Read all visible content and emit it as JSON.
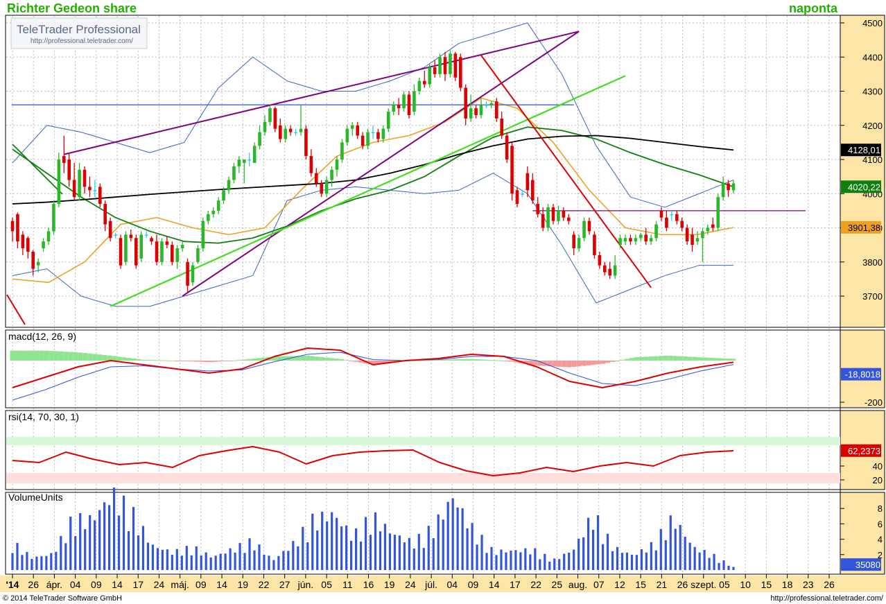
{
  "header": {
    "title": "Richter Gedeon share",
    "interval": "naponta"
  },
  "logo": {
    "brand": "TeleTrader Professional",
    "url": "http://professional.teletrader.com/"
  },
  "footer": {
    "copyright": "© 2014  TeleTrader Software GmbH",
    "url": "http://professional.teletrader.com/"
  },
  "colors": {
    "up": "#2ab82a",
    "down": "#dd0000",
    "doji": "#33c8f0",
    "bollinger": "#3a63c8",
    "sma_orange": "#f0a020",
    "sma_green": "#0f7f0f",
    "sma_black": "#000000",
    "trend_purple": "#800080",
    "trend_green": "#44dd22",
    "trend_red": "#dd0000",
    "trend_blue": "#3366cc",
    "axis_bg": "#fde5a8",
    "grid": "#bbbbbb",
    "volume": "#3355dd",
    "macd_line": "#dd0000",
    "macd_signal": "#3355dd",
    "rsi": "#dd0000"
  },
  "price_panel": {
    "y_ticks": [
      3700,
      3800,
      3900,
      4000,
      4100,
      4200,
      4300,
      4400,
      4500
    ],
    "badges": [
      {
        "label": "4128,01",
        "value": 4128.01,
        "bg": "#000000",
        "fg": "#ffffff"
      },
      {
        "label": "4020,22",
        "value": 4020.22,
        "bg": "#0f7f0f",
        "fg": "#ffffff"
      },
      {
        "label": "3901,38",
        "value": 3901.38,
        "bg": "#f0a020",
        "fg": "#000000"
      }
    ]
  },
  "macd_panel": {
    "label": "macd(12, 26, 9)",
    "y_ticks": [
      {
        "value": -200,
        "label": "-200"
      }
    ],
    "badges": [
      {
        "label": "-18,8018",
        "value": -18.8018,
        "bg": "#3355dd",
        "fg": "#ffffff"
      }
    ]
  },
  "rsi_panel": {
    "label": "rsi(14, 70, 30, 1)",
    "y_ticks": [
      20,
      40
    ],
    "overbought": 70,
    "oversold": 30,
    "badges": [
      {
        "label": "62,2373",
        "value": 62.2373,
        "bg": "#dd0000",
        "fg": "#ffffff"
      }
    ]
  },
  "volume_panel": {
    "label": "VolumeUnits",
    "y_ticks": [
      2,
      4,
      6,
      8
    ],
    "badges": [
      {
        "label": "35080",
        "value": 0.35,
        "bg": "#3355dd",
        "fg": "#ffffff"
      }
    ]
  },
  "date_axis": [
    {
      "label": "'14",
      "bold": true
    },
    {
      "label": "26"
    },
    {
      "label": "ápr."
    },
    {
      "label": "04"
    },
    {
      "label": "09"
    },
    {
      "label": "14"
    },
    {
      "label": "17"
    },
    {
      "label": "24"
    },
    {
      "label": "máj."
    },
    {
      "label": "09"
    },
    {
      "label": "14"
    },
    {
      "label": "19"
    },
    {
      "label": "22"
    },
    {
      "label": "27"
    },
    {
      "label": "jún."
    },
    {
      "label": "05"
    },
    {
      "label": "11"
    },
    {
      "label": "16"
    },
    {
      "label": "19"
    },
    {
      "label": "24"
    },
    {
      "label": "júl."
    },
    {
      "label": "04"
    },
    {
      "label": "09"
    },
    {
      "label": "14"
    },
    {
      "label": "17"
    },
    {
      "label": "22"
    },
    {
      "label": "25"
    },
    {
      "label": "aug."
    },
    {
      "label": "07"
    },
    {
      "label": "12"
    },
    {
      "label": "15"
    },
    {
      "label": "21"
    },
    {
      "label": "26"
    },
    {
      "label": "szept."
    },
    {
      "label": "05"
    },
    {
      "label": "10"
    },
    {
      "label": "15"
    },
    {
      "label": "18"
    },
    {
      "label": "23"
    },
    {
      "label": "26"
    }
  ],
  "chart_data": {
    "type": "candlestick",
    "title": "Richter Gedeon share",
    "ylim": [
      3650,
      4520
    ],
    "candles": [
      {
        "o": 3920,
        "h": 3930,
        "l": 3860,
        "c": 3890
      },
      {
        "o": 3940,
        "h": 3945,
        "l": 3840,
        "c": 3860
      },
      {
        "o": 3880,
        "h": 3890,
        "l": 3820,
        "c": 3840
      },
      {
        "o": 3870,
        "h": 3875,
        "l": 3810,
        "c": 3830
      },
      {
        "o": 3830,
        "h": 3835,
        "l": 3760,
        "c": 3780
      },
      {
        "o": 3790,
        "h": 3810,
        "l": 3770,
        "c": 3800
      },
      {
        "o": 3840,
        "h": 3870,
        "l": 3830,
        "c": 3860
      },
      {
        "o": 3860,
        "h": 3900,
        "l": 3850,
        "c": 3890
      },
      {
        "o": 3890,
        "h": 3980,
        "l": 3880,
        "c": 3970
      },
      {
        "o": 3970,
        "h": 4120,
        "l": 3960,
        "c": 4100
      },
      {
        "o": 4110,
        "h": 4170,
        "l": 4060,
        "c": 4090
      },
      {
        "o": 4100,
        "h": 4120,
        "l": 4020,
        "c": 4040
      },
      {
        "o": 4040,
        "h": 4090,
        "l": 3980,
        "c": 3990
      },
      {
        "o": 3990,
        "h": 4090,
        "l": 3980,
        "c": 4070
      },
      {
        "o": 4070,
        "h": 4080,
        "l": 4000,
        "c": 4020
      },
      {
        "o": 4020,
        "h": 4050,
        "l": 3990,
        "c": 4010
      },
      {
        "o": 4010,
        "h": 4040,
        "l": 3990,
        "c": 4010
      },
      {
        "o": 4020,
        "h": 4030,
        "l": 3960,
        "c": 3970
      },
      {
        "o": 3970,
        "h": 3980,
        "l": 3890,
        "c": 3910
      },
      {
        "o": 3920,
        "h": 3930,
        "l": 3860,
        "c": 3870
      },
      {
        "o": 3880,
        "h": 3885,
        "l": 3870,
        "c": 3880
      },
      {
        "o": 3870,
        "h": 3880,
        "l": 3780,
        "c": 3790
      },
      {
        "o": 3800,
        "h": 3890,
        "l": 3790,
        "c": 3880
      },
      {
        "o": 3880,
        "h": 3895,
        "l": 3860,
        "c": 3870
      },
      {
        "o": 3870,
        "h": 3880,
        "l": 3780,
        "c": 3790
      },
      {
        "o": 3810,
        "h": 3890,
        "l": 3800,
        "c": 3880
      },
      {
        "o": 3880,
        "h": 3890,
        "l": 3870,
        "c": 3880
      },
      {
        "o": 3870,
        "h": 3875,
        "l": 3850,
        "c": 3860
      },
      {
        "o": 3860,
        "h": 3880,
        "l": 3790,
        "c": 3800
      },
      {
        "o": 3800,
        "h": 3870,
        "l": 3790,
        "c": 3860
      },
      {
        "o": 3860,
        "h": 3875,
        "l": 3840,
        "c": 3850
      },
      {
        "o": 3850,
        "h": 3860,
        "l": 3790,
        "c": 3800
      },
      {
        "o": 3800,
        "h": 3850,
        "l": 3780,
        "c": 3840
      },
      {
        "o": 3840,
        "h": 3860,
        "l": 3830,
        "c": 3850
      },
      {
        "o": 3800,
        "h": 3810,
        "l": 3710,
        "c": 3730
      },
      {
        "o": 3740,
        "h": 3800,
        "l": 3730,
        "c": 3790
      },
      {
        "o": 3800,
        "h": 3850,
        "l": 3795,
        "c": 3840
      },
      {
        "o": 3840,
        "h": 3930,
        "l": 3830,
        "c": 3920
      },
      {
        "o": 3920,
        "h": 3950,
        "l": 3910,
        "c": 3940
      },
      {
        "o": 3940,
        "h": 3960,
        "l": 3930,
        "c": 3950
      },
      {
        "o": 3950,
        "h": 3990,
        "l": 3940,
        "c": 3980
      },
      {
        "o": 3980,
        "h": 4020,
        "l": 3970,
        "c": 4010
      },
      {
        "o": 4010,
        "h": 4050,
        "l": 4000,
        "c": 4040
      },
      {
        "o": 4040,
        "h": 4090,
        "l": 4030,
        "c": 4080
      },
      {
        "o": 4080,
        "h": 4110,
        "l": 4060,
        "c": 4100
      },
      {
        "o": 4090,
        "h": 4100,
        "l": 4030,
        "c": 4100
      },
      {
        "o": 4100,
        "h": 4120,
        "l": 4080,
        "c": 4100
      },
      {
        "o": 4090,
        "h": 4150,
        "l": 4090,
        "c": 4140
      },
      {
        "o": 4140,
        "h": 4200,
        "l": 4130,
        "c": 4180
      },
      {
        "o": 4180,
        "h": 4230,
        "l": 4170,
        "c": 4210
      },
      {
        "o": 4210,
        "h": 4260,
        "l": 4200,
        "c": 4250
      },
      {
        "o": 4250,
        "h": 4255,
        "l": 4180,
        "c": 4190
      },
      {
        "o": 4200,
        "h": 4220,
        "l": 4150,
        "c": 4160
      },
      {
        "o": 4160,
        "h": 4200,
        "l": 4150,
        "c": 4190
      },
      {
        "o": 4190,
        "h": 4200,
        "l": 4170,
        "c": 4180
      },
      {
        "o": 4180,
        "h": 4190,
        "l": 4170,
        "c": 4180
      },
      {
        "o": 4180,
        "h": 4260,
        "l": 4170,
        "c": 4190
      },
      {
        "o": 4190,
        "h": 4200,
        "l": 4100,
        "c": 4110
      },
      {
        "o": 4110,
        "h": 4130,
        "l": 4050,
        "c": 4060
      },
      {
        "o": 4060,
        "h": 4075,
        "l": 4020,
        "c": 4030
      },
      {
        "o": 4030,
        "h": 4040,
        "l": 3990,
        "c": 4000
      },
      {
        "o": 4000,
        "h": 4050,
        "l": 3990,
        "c": 4040
      },
      {
        "o": 4040,
        "h": 4080,
        "l": 4020,
        "c": 4070
      },
      {
        "o": 4070,
        "h": 4110,
        "l": 4050,
        "c": 4100
      },
      {
        "o": 4100,
        "h": 4160,
        "l": 4090,
        "c": 4150
      },
      {
        "o": 4150,
        "h": 4200,
        "l": 4140,
        "c": 4190
      },
      {
        "o": 4190,
        "h": 4210,
        "l": 4170,
        "c": 4200
      },
      {
        "o": 4200,
        "h": 4210,
        "l": 4160,
        "c": 4170
      },
      {
        "o": 4170,
        "h": 4180,
        "l": 4130,
        "c": 4140
      },
      {
        "o": 4140,
        "h": 4190,
        "l": 4130,
        "c": 4180
      },
      {
        "o": 4180,
        "h": 4200,
        "l": 4160,
        "c": 4180
      },
      {
        "o": 4180,
        "h": 4190,
        "l": 4150,
        "c": 4160
      },
      {
        "o": 4160,
        "h": 4200,
        "l": 4150,
        "c": 4190
      },
      {
        "o": 4190,
        "h": 4250,
        "l": 4180,
        "c": 4240
      },
      {
        "o": 4240,
        "h": 4270,
        "l": 4230,
        "c": 4260
      },
      {
        "o": 4260,
        "h": 4280,
        "l": 4230,
        "c": 4250
      },
      {
        "o": 4250,
        "h": 4300,
        "l": 4240,
        "c": 4290
      },
      {
        "o": 4290,
        "h": 4300,
        "l": 4220,
        "c": 4230
      },
      {
        "o": 4240,
        "h": 4320,
        "l": 4230,
        "c": 4300
      },
      {
        "o": 4300,
        "h": 4340,
        "l": 4290,
        "c": 4330
      },
      {
        "o": 4330,
        "h": 4360,
        "l": 4310,
        "c": 4320
      },
      {
        "o": 4320,
        "h": 4380,
        "l": 4310,
        "c": 4370
      },
      {
        "o": 4370,
        "h": 4390,
        "l": 4340,
        "c": 4350
      },
      {
        "o": 4350,
        "h": 4410,
        "l": 4340,
        "c": 4400
      },
      {
        "o": 4400,
        "h": 4415,
        "l": 4330,
        "c": 4350
      },
      {
        "o": 4350,
        "h": 4420,
        "l": 4340,
        "c": 4410
      },
      {
        "o": 4410,
        "h": 4415,
        "l": 4330,
        "c": 4340
      },
      {
        "o": 4400,
        "h": 4410,
        "l": 4300,
        "c": 4310
      },
      {
        "o": 4310,
        "h": 4320,
        "l": 4200,
        "c": 4220
      },
      {
        "o": 4220,
        "h": 4290,
        "l": 4210,
        "c": 4250
      },
      {
        "o": 4250,
        "h": 4260,
        "l": 4220,
        "c": 4230
      },
      {
        "o": 4230,
        "h": 4280,
        "l": 4220,
        "c": 4260
      },
      {
        "o": 4260,
        "h": 4270,
        "l": 4250,
        "c": 4260
      },
      {
        "o": 4260,
        "h": 4270,
        "l": 4250,
        "c": 4265
      },
      {
        "o": 4270,
        "h": 4280,
        "l": 4210,
        "c": 4220
      },
      {
        "o": 4220,
        "h": 4240,
        "l": 4160,
        "c": 4170
      },
      {
        "o": 4170,
        "h": 4180,
        "l": 4090,
        "c": 4100
      },
      {
        "o": 4140,
        "h": 4150,
        "l": 3980,
        "c": 4000
      },
      {
        "o": 4010,
        "h": 4020,
        "l": 3960,
        "c": 3970
      },
      {
        "o": 4000,
        "h": 4010,
        "l": 3990,
        "c": 4000
      },
      {
        "o": 4060,
        "h": 4080,
        "l": 3990,
        "c": 4010
      },
      {
        "o": 4040,
        "h": 4060,
        "l": 3970,
        "c": 3980
      },
      {
        "o": 3970,
        "h": 3990,
        "l": 3930,
        "c": 3940
      },
      {
        "o": 3940,
        "h": 3960,
        "l": 3890,
        "c": 3900
      },
      {
        "o": 3900,
        "h": 3970,
        "l": 3890,
        "c": 3960
      },
      {
        "o": 3960,
        "h": 3970,
        "l": 3910,
        "c": 3920
      },
      {
        "o": 3920,
        "h": 3965,
        "l": 3910,
        "c": 3950
      },
      {
        "o": 3950,
        "h": 3960,
        "l": 3920,
        "c": 3930
      },
      {
        "o": 3930,
        "h": 3940,
        "l": 3910,
        "c": 3920
      },
      {
        "o": 3880,
        "h": 3890,
        "l": 3820,
        "c": 3840
      },
      {
        "o": 3840,
        "h": 3880,
        "l": 3830,
        "c": 3870
      },
      {
        "o": 3870,
        "h": 3930,
        "l": 3860,
        "c": 3920
      },
      {
        "o": 3920,
        "h": 3930,
        "l": 3880,
        "c": 3890
      },
      {
        "o": 3880,
        "h": 3890,
        "l": 3810,
        "c": 3820
      },
      {
        "o": 3820,
        "h": 3830,
        "l": 3780,
        "c": 3790
      },
      {
        "o": 3790,
        "h": 3800,
        "l": 3760,
        "c": 3770
      },
      {
        "o": 3780,
        "h": 3800,
        "l": 3750,
        "c": 3760
      },
      {
        "o": 3760,
        "h": 3820,
        "l": 3750,
        "c": 3790
      },
      {
        "o": 3850,
        "h": 3880,
        "l": 3840,
        "c": 3870
      },
      {
        "o": 3860,
        "h": 3880,
        "l": 3850,
        "c": 3870
      },
      {
        "o": 3870,
        "h": 3880,
        "l": 3850,
        "c": 3860
      },
      {
        "o": 3860,
        "h": 3880,
        "l": 3850,
        "c": 3870
      },
      {
        "o": 3870,
        "h": 3885,
        "l": 3860,
        "c": 3880
      },
      {
        "o": 3880,
        "h": 3900,
        "l": 3850,
        "c": 3860
      },
      {
        "o": 3860,
        "h": 3880,
        "l": 3850,
        "c": 3870
      },
      {
        "o": 3870,
        "h": 3920,
        "l": 3860,
        "c": 3910
      },
      {
        "o": 3950,
        "h": 3960,
        "l": 3920,
        "c": 3930
      },
      {
        "o": 3930,
        "h": 3950,
        "l": 3890,
        "c": 3900
      },
      {
        "o": 3940,
        "h": 3950,
        "l": 3920,
        "c": 3940
      },
      {
        "o": 3940,
        "h": 3950,
        "l": 3910,
        "c": 3920
      },
      {
        "o": 3920,
        "h": 3930,
        "l": 3890,
        "c": 3900
      },
      {
        "o": 3900,
        "h": 3910,
        "l": 3850,
        "c": 3860
      },
      {
        "o": 3880,
        "h": 3900,
        "l": 3830,
        "c": 3850
      },
      {
        "o": 3860,
        "h": 3890,
        "l": 3850,
        "c": 3870
      },
      {
        "o": 3870,
        "h": 3900,
        "l": 3800,
        "c": 3890
      },
      {
        "o": 3890,
        "h": 3910,
        "l": 3880,
        "c": 3900
      },
      {
        "o": 3910,
        "h": 3930,
        "l": 3890,
        "c": 3900
      },
      {
        "o": 3900,
        "h": 4000,
        "l": 3890,
        "c": 3990
      },
      {
        "o": 3990,
        "h": 4050,
        "l": 3980,
        "c": 4030
      },
      {
        "o": 4030,
        "h": 4040,
        "l": 3990,
        "c": 4010
      },
      {
        "o": 4010,
        "h": 4040,
        "l": 4000,
        "c": 4030
      }
    ],
    "sma_black": [
      3970,
      3975,
      3982,
      3990,
      3998,
      4005,
      4012,
      4018,
      4024,
      4030,
      4040,
      4060,
      4085,
      4115,
      4140,
      4160,
      4168,
      4170,
      4162,
      4150,
      4138,
      4128
    ],
    "sma_green": [
      4130,
      4060,
      3990,
      3930,
      3890,
      3860,
      3855,
      3870,
      3905,
      3950,
      3985,
      4010,
      4050,
      4110,
      4165,
      4195,
      4185,
      4160,
      4120,
      4085,
      4055,
      4020
    ],
    "sma_orange": [
      3750,
      3740,
      3800,
      3910,
      3930,
      3900,
      3880,
      3900,
      4010,
      4110,
      4150,
      4170,
      4210,
      4280,
      4250,
      4150,
      4010,
      3900,
      3880,
      3880,
      3901
    ],
    "bollinger_upper": [
      4090,
      4200,
      4180,
      4150,
      4120,
      4150,
      4310,
      4400,
      4330,
      4300,
      4300,
      4330,
      4370,
      4440,
      4470,
      4500,
      4350,
      4140,
      3990,
      3960,
      4000,
      4040
    ],
    "bollinger_lower": [
      3760,
      3780,
      3700,
      3670,
      3670,
      3700,
      3730,
      3760,
      3980,
      4010,
      4020,
      4010,
      4000,
      4010,
      4060,
      4000,
      3850,
      3680,
      3720,
      3760,
      3790,
      3790
    ],
    "macd": {
      "line": [
        -130,
        -80,
        -30,
        0,
        -20,
        -40,
        -60,
        -40,
        20,
        60,
        50,
        -20,
        0,
        10,
        30,
        20,
        -30,
        -100,
        -130,
        -100,
        -60,
        -30,
        -8
      ],
      "signal": [
        -190,
        -140,
        -80,
        -30,
        -25,
        -40,
        -50,
        -45,
        -5,
        30,
        40,
        5,
        0,
        5,
        20,
        20,
        0,
        -60,
        -110,
        -120,
        -90,
        -50,
        -18.8
      ]
    },
    "rsi": [
      48,
      45,
      60,
      50,
      42,
      45,
      38,
      55,
      62,
      68,
      60,
      43,
      55,
      60,
      62,
      63,
      45,
      33,
      26,
      30,
      38,
      32,
      40,
      45,
      40,
      55,
      60,
      62
    ],
    "volume": [
      3.4,
      1.5,
      2.0,
      6.2,
      6.3,
      9.5,
      7.0,
      3.0,
      2.2,
      2.8,
      1.6,
      2.6,
      3.6,
      1.2,
      3.2,
      6.2,
      7.0,
      4.2,
      6.6,
      4.5,
      3.4,
      5.2,
      9.1,
      5.0,
      2.3,
      2.4,
      2.5,
      1.2,
      2.5,
      6.9,
      2.8,
      1.8,
      3.2,
      6.5,
      2.8,
      1.8,
      0.35
    ]
  }
}
